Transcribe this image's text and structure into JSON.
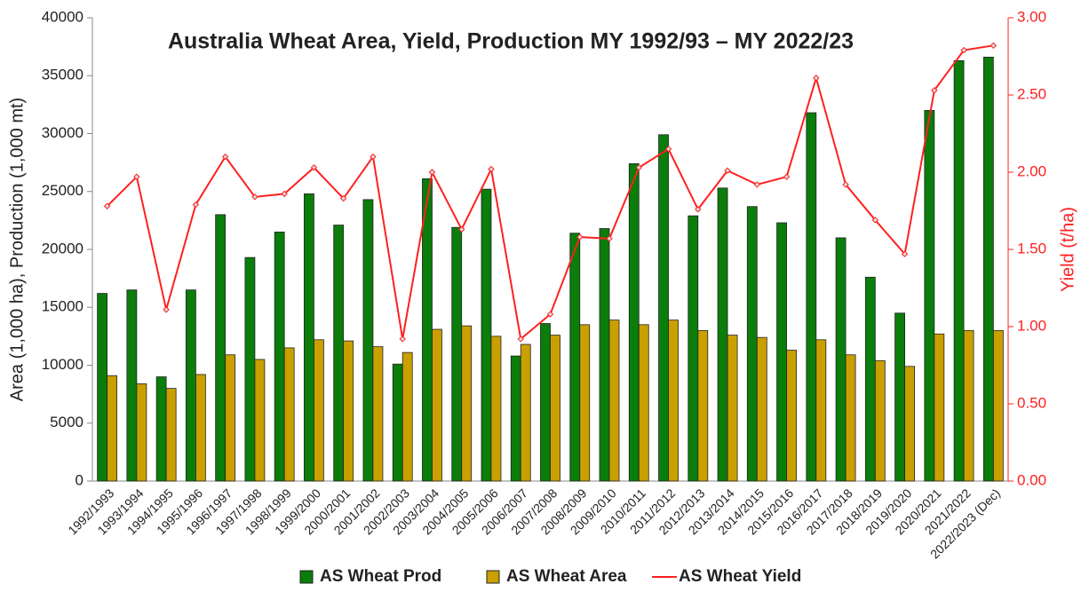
{
  "chart_data": {
    "type": "bar-line",
    "title": "Australia Wheat Area, Yield, Production MY 1992/93 – MY 2022/23",
    "ylabel": "Area (1,000 ha), Production (1,000 mt)",
    "y2label": "Yield (t/ha)",
    "categories": [
      "1992/1993",
      "1993/1994",
      "1994/1995",
      "1995/1996",
      "1996/1997",
      "1997/1998",
      "1998/1999",
      "1999/2000",
      "2000/2001",
      "2001/2002",
      "2002/2003",
      "2003/2004",
      "2004/2005",
      "2005/2006",
      "2006/2007",
      "2007/2008",
      "2008/2009",
      "2009/2010",
      "2010/2011",
      "2011/2012",
      "2012/2013",
      "2013/2014",
      "2014/2015",
      "2015/2016",
      "2016/2017",
      "2017/2018",
      "2018/2019",
      "2019/2020",
      "2020/2021",
      "2021/2022",
      "2022/2023 (Dec)"
    ],
    "series": [
      {
        "name": "AS Wheat Prod",
        "type": "bar",
        "color": "#0a7d0a",
        "values": [
          16200,
          16500,
          9000,
          16500,
          23000,
          19300,
          21500,
          24800,
          22100,
          24300,
          10100,
          26100,
          21900,
          25200,
          10800,
          13600,
          21400,
          21800,
          27400,
          29900,
          22900,
          25300,
          23700,
          22300,
          31800,
          21000,
          17600,
          14500,
          32000,
          36300,
          36600
        ]
      },
      {
        "name": "AS Wheat Area",
        "type": "bar",
        "color": "#c9a000",
        "values": [
          9100,
          8400,
          8000,
          9200,
          10900,
          10500,
          11500,
          12200,
          12100,
          11600,
          11100,
          13100,
          13400,
          12500,
          11800,
          12600,
          13500,
          13900,
          13500,
          13900,
          13000,
          12600,
          12400,
          11300,
          12200,
          10900,
          10400,
          9900,
          12700,
          13000,
          13000
        ]
      },
      {
        "name": "AS Wheat Yield",
        "type": "line",
        "axis": "y2",
        "color": "#ff2020",
        "values": [
          1.78,
          1.97,
          1.11,
          1.79,
          2.1,
          1.84,
          1.86,
          2.03,
          1.83,
          2.1,
          0.92,
          2.0,
          1.63,
          2.02,
          0.92,
          1.08,
          1.58,
          1.57,
          2.03,
          2.15,
          1.76,
          2.01,
          1.92,
          1.97,
          2.61,
          1.92,
          1.69,
          1.47,
          2.53,
          2.79,
          2.82
        ]
      }
    ],
    "ylim": [
      0,
      40000
    ],
    "yticks": [
      0,
      5000,
      10000,
      15000,
      20000,
      25000,
      30000,
      35000,
      40000
    ],
    "y2lim": [
      0,
      3
    ],
    "y2ticks": [
      {
        "value": 0,
        "label": "0.00"
      },
      {
        "value": 0.5,
        "label": "0.50"
      },
      {
        "value": 1,
        "label": "1.00"
      },
      {
        "value": 1.5,
        "label": "1.50"
      },
      {
        "value": 2,
        "label": "2.00"
      },
      {
        "value": 2.5,
        "label": "2.50"
      },
      {
        "value": 3,
        "label": "3.00"
      }
    ],
    "legend": "bottom"
  }
}
